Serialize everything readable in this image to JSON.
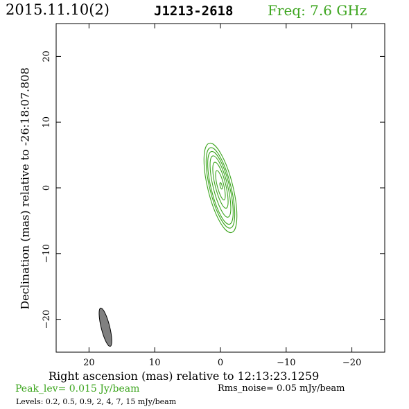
{
  "header": {
    "date": "2015.11.10(2)",
    "source": "J1213-2618",
    "freq": "Freq: 7.6 GHz"
  },
  "footer": {
    "peak": "Peak_lev=  0.015 Jy/beam",
    "rms": "Rms_noise= 0.05 mJy/beam",
    "levels": "Levels: 0.2, 0.5, 0.9,   2,   4,   7,  15 mJy/beam"
  },
  "colors": {
    "contour": "#3ca51e",
    "beam_fill": "#808080",
    "axis": "#000000"
  },
  "chart_data": {
    "type": "contour",
    "xlabel": "Right ascension (mas) relative to 12:13:23.1259",
    "ylabel": "Declination (mas) relative to -26:18:07.808",
    "xlim": [
      25,
      -25
    ],
    "ylim": [
      -25,
      25
    ],
    "x_ticks": [
      20,
      10,
      0,
      -10,
      -20
    ],
    "y_ticks": [
      20,
      10,
      0,
      -10,
      -20
    ],
    "x_tick_labels": [
      "20",
      "10",
      "0",
      "−10",
      "−20"
    ],
    "y_tick_labels": [
      "20",
      "10",
      "0",
      "−10",
      "−20"
    ],
    "contour_levels_mJy": [
      0.2,
      0.5,
      0.9,
      2,
      4,
      7,
      15
    ],
    "contours": [
      {
        "level": 0.2,
        "cx": 0.0,
        "cy": 0.0,
        "major": 14.0,
        "minor": 3.8,
        "pa_deg": -14
      },
      {
        "level": 0.5,
        "cx": 0.0,
        "cy": 0.0,
        "major": 12.6,
        "minor": 3.2,
        "pa_deg": -14
      },
      {
        "level": 0.9,
        "cx": 0.0,
        "cy": 0.0,
        "major": 11.4,
        "minor": 2.8,
        "pa_deg": -14
      },
      {
        "level": 2,
        "cx": 0.0,
        "cy": 0.2,
        "major": 9.6,
        "minor": 2.2,
        "pa_deg": -14
      },
      {
        "level": 4,
        "cx": 0.0,
        "cy": 0.4,
        "major": 7.2,
        "minor": 1.6,
        "pa_deg": -14
      },
      {
        "level": 7,
        "cx": 0.0,
        "cy": 0.4,
        "major": 4.6,
        "minor": 1.0,
        "pa_deg": -14
      },
      {
        "level": 15,
        "cx": -0.1,
        "cy": 0.3,
        "major": 1.0,
        "minor": 0.3,
        "pa_deg": -14
      }
    ],
    "beam": {
      "cx": 17.5,
      "cy": -21.2,
      "major": 6.0,
      "minor": 1.3,
      "pa_deg": -14
    }
  }
}
